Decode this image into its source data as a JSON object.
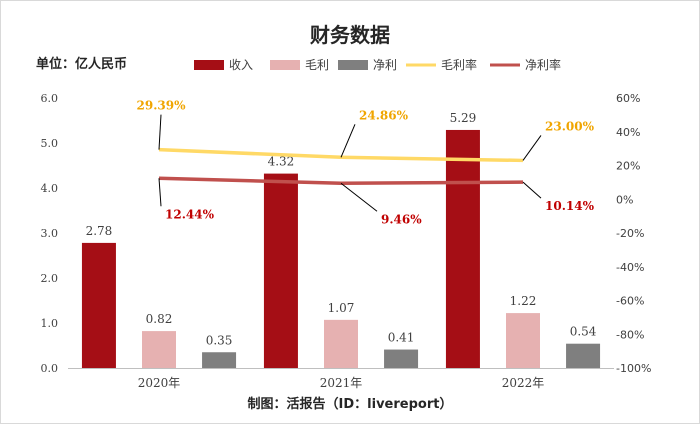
{
  "chart_data": {
    "type": "bar",
    "title": "财务数据",
    "unit_label": "单位：亿人民币",
    "footer": "制图：活报告（ID：livereport）",
    "categories": [
      "2020年",
      "2021年",
      "2022年"
    ],
    "y_left": {
      "ylim": [
        0,
        6
      ],
      "ticks": [
        "0.0",
        "1.0",
        "2.0",
        "3.0",
        "4.0",
        "5.0",
        "6.0"
      ]
    },
    "y_right": {
      "ylim": [
        -100,
        60
      ],
      "ticks": [
        "-100%",
        "-80%",
        "-60%",
        "-40%",
        "-20%",
        "0%",
        "20%",
        "40%",
        "60%"
      ]
    },
    "bar_series": [
      {
        "name": "收入",
        "color": "#a50e15",
        "values": [
          2.78,
          4.32,
          5.29
        ],
        "labels": [
          "2.78",
          "4.32",
          "5.29"
        ]
      },
      {
        "name": "毛利",
        "color": "#e6b1b1",
        "values": [
          0.82,
          1.07,
          1.22
        ],
        "labels": [
          "0.82",
          "1.07",
          "1.22"
        ]
      },
      {
        "name": "净利",
        "color": "#7f7f7f",
        "values": [
          0.35,
          0.41,
          0.54
        ],
        "labels": [
          "0.35",
          "0.41",
          "0.54"
        ]
      }
    ],
    "line_series": [
      {
        "name": "毛利率",
        "color": "#ffd966",
        "label_color": "#f0a500",
        "values": [
          29.39,
          24.86,
          23.0
        ],
        "labels": [
          "29.39%",
          "24.86%",
          "23.00%"
        ]
      },
      {
        "name": "净利率",
        "color": "#c0504d",
        "label_color": "#c00000",
        "values": [
          12.44,
          9.46,
          10.14
        ],
        "labels": [
          "12.44%",
          "9.46%",
          "10.14%"
        ]
      }
    ],
    "legend_position": "top",
    "grid": false
  }
}
